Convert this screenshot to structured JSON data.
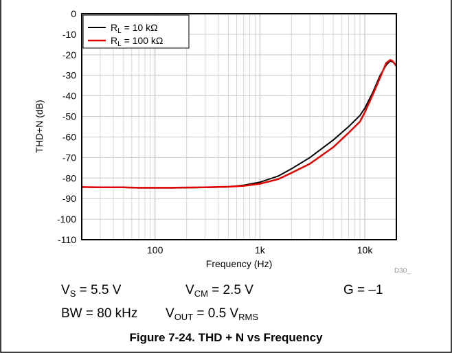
{
  "chart_data": {
    "type": "line",
    "xlabel": "Frequency (Hz)",
    "ylabel": "THD+N (dB)",
    "xscale": "log",
    "xlim": [
      20,
      20000
    ],
    "ylim": [
      -110,
      0
    ],
    "x_ticks": [
      {
        "value": 100,
        "label": "100"
      },
      {
        "value": 1000,
        "label": "1k"
      },
      {
        "value": 10000,
        "label": "10k"
      }
    ],
    "y_ticks": [
      0,
      -10,
      -20,
      -30,
      -40,
      -50,
      -60,
      -70,
      -80,
      -90,
      -100,
      -110
    ],
    "grid": true,
    "legend_position": "top-left",
    "series": [
      {
        "name_main": "R",
        "name_sub": "L",
        "name_rest": " = 10 kΩ",
        "color": "#000000",
        "points": [
          [
            20,
            -84.4
          ],
          [
            30,
            -84.5
          ],
          [
            50,
            -84.6
          ],
          [
            70,
            -84.8
          ],
          [
            100,
            -84.8
          ],
          [
            150,
            -84.8
          ],
          [
            200,
            -84.7
          ],
          [
            300,
            -84.6
          ],
          [
            500,
            -84.3
          ],
          [
            700,
            -83.5
          ],
          [
            1000,
            -82.0
          ],
          [
            1500,
            -79.0
          ],
          [
            2000,
            -75.5
          ],
          [
            3000,
            -70.0
          ],
          [
            5000,
            -61.5
          ],
          [
            7000,
            -55.0
          ],
          [
            9000,
            -49.5
          ],
          [
            10000,
            -46.0
          ],
          [
            12000,
            -38.0
          ],
          [
            14000,
            -30.0
          ],
          [
            16000,
            -25.0
          ],
          [
            17500,
            -23.0
          ],
          [
            18500,
            -23.5
          ],
          [
            20000,
            -25.0
          ]
        ]
      },
      {
        "name_main": "R",
        "name_sub": "L",
        "name_rest": " = 100 kΩ",
        "color": "#e00000",
        "points": [
          [
            20,
            -84.4
          ],
          [
            30,
            -84.5
          ],
          [
            50,
            -84.5
          ],
          [
            70,
            -84.7
          ],
          [
            100,
            -84.7
          ],
          [
            150,
            -84.7
          ],
          [
            200,
            -84.6
          ],
          [
            300,
            -84.5
          ],
          [
            500,
            -84.2
          ],
          [
            700,
            -83.8
          ],
          [
            1000,
            -82.8
          ],
          [
            1500,
            -80.5
          ],
          [
            2000,
            -77.5
          ],
          [
            3000,
            -73.0
          ],
          [
            5000,
            -65.0
          ],
          [
            7000,
            -58.0
          ],
          [
            9000,
            -52.5
          ],
          [
            10000,
            -48.0
          ],
          [
            12000,
            -39.0
          ],
          [
            14000,
            -31.0
          ],
          [
            16000,
            -24.0
          ],
          [
            17500,
            -22.5
          ],
          [
            18500,
            -23.2
          ],
          [
            20000,
            -25.5
          ]
        ]
      }
    ]
  },
  "figure_code": "D30_",
  "conditions": {
    "vs_main": "V",
    "vs_sub": "S",
    "vs_rest": " = 5.5 V",
    "vcm_main": "V",
    "vcm_sub": "CM",
    "vcm_rest": " = 2.5 V",
    "gain": "G = –1",
    "bw": "BW = 80 kHz",
    "vout_main": "V",
    "vout_sub": "OUT",
    "vout_mid": " = 0.5 V",
    "vout_sub2": "RMS"
  },
  "caption": "Figure 7-24. THD + N vs Frequency"
}
